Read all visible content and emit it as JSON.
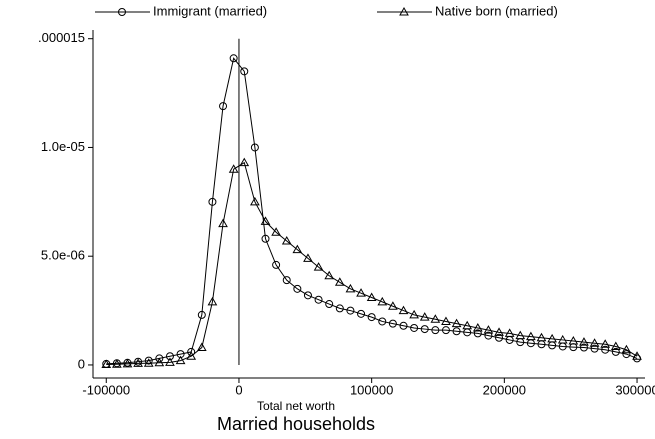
{
  "chart_data": {
    "type": "line",
    "title": "Married households",
    "xlabel": "Total net worth",
    "x": [
      -100000,
      -92000,
      -84000,
      -76000,
      -68000,
      -60000,
      -52000,
      -44000,
      -36000,
      -28000,
      -20000,
      -12000,
      -4000,
      4000,
      12000,
      20000,
      28000,
      36000,
      44000,
      52000,
      60000,
      68000,
      76000,
      84000,
      92000,
      100000,
      108000,
      116000,
      124000,
      132000,
      140000,
      148000,
      156000,
      164000,
      172000,
      180000,
      188000,
      196000,
      204000,
      212000,
      220000,
      228000,
      236000,
      244000,
      252000,
      260000,
      268000,
      276000,
      284000,
      292000,
      300000
    ],
    "series": [
      {
        "name": "Immigrant (married)",
        "color": "#000000",
        "marker": "circle",
        "values": [
          5e-08,
          8e-08,
          1e-07,
          1.5e-07,
          2e-07,
          3e-07,
          4e-07,
          5e-07,
          6e-07,
          2.3e-06,
          7.5e-06,
          1.19e-05,
          1.41e-05,
          1.35e-05,
          1e-05,
          5.8e-06,
          4.6e-06,
          3.9e-06,
          3.5e-06,
          3.2e-06,
          3e-06,
          2.8e-06,
          2.6e-06,
          2.5e-06,
          2.35e-06,
          2.2e-06,
          2e-06,
          1.9e-06,
          1.8e-06,
          1.7e-06,
          1.65e-06,
          1.6e-06,
          1.6e-06,
          1.55e-06,
          1.5e-06,
          1.45e-06,
          1.35e-06,
          1.25e-06,
          1.15e-06,
          1.05e-06,
          1e-06,
          9.5e-07,
          9e-07,
          8.5e-07,
          8.2e-07,
          8e-07,
          7.5e-07,
          7e-07,
          6e-07,
          5e-07,
          3e-07
        ]
      },
      {
        "name": "Native born (married)",
        "color": "#000000",
        "marker": "triangle",
        "values": [
          2e-08,
          3e-08,
          5e-08,
          7e-08,
          8e-08,
          1e-07,
          1.2e-07,
          2e-07,
          4e-07,
          8e-07,
          2.9e-06,
          6.5e-06,
          9e-06,
          9.3e-06,
          7.5e-06,
          6.6e-06,
          6.1e-06,
          5.7e-06,
          5.3e-06,
          4.9e-06,
          4.5e-06,
          4.1e-06,
          3.8e-06,
          3.5e-06,
          3.3e-06,
          3.1e-06,
          2.9e-06,
          2.7e-06,
          2.5e-06,
          2.3e-06,
          2.2e-06,
          2.1e-06,
          2e-06,
          1.9e-06,
          1.8e-06,
          1.7e-06,
          1.6e-06,
          1.5e-06,
          1.45e-06,
          1.35e-06,
          1.3e-06,
          1.25e-06,
          1.2e-06,
          1.15e-06,
          1.1e-06,
          1.05e-06,
          1e-06,
          9.5e-07,
          8.5e-07,
          7e-07,
          4e-07
        ]
      }
    ],
    "xlim": [
      -110000,
      306000
    ],
    "xticks": [
      -100000,
      0,
      100000,
      200000,
      300000
    ],
    "ylim": [
      -6e-07,
      1.54e-05
    ],
    "yticks": [
      0,
      {
        "value": 5e-06,
        "label": "5.0e-06"
      },
      {
        "value": 1e-05,
        "label": "1.0e-05"
      },
      {
        "value": 1.5e-05,
        "label": ".000015"
      }
    ],
    "vline": 0,
    "legend": "top"
  }
}
